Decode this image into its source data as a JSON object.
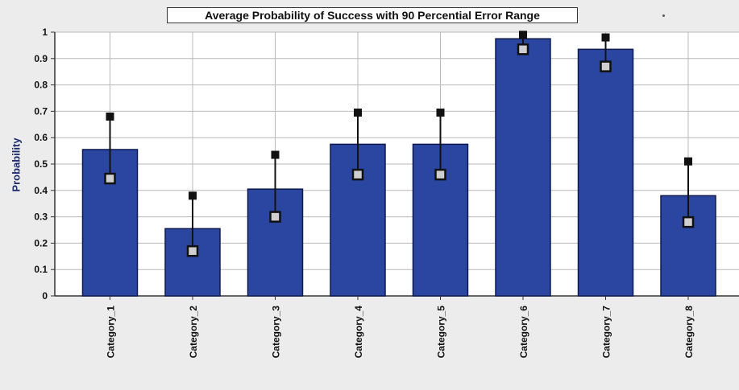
{
  "chart_data": {
    "type": "bar",
    "title": "Average Probability of Success with 90 Percential Error Range",
    "xlabel": "",
    "ylabel": "Probability",
    "ylim": [
      0,
      1
    ],
    "yticks": [
      "0",
      "0.1",
      "0.2",
      "0.3",
      "0.4",
      "0.5",
      "0.6",
      "0.7",
      "0.8",
      "0.9",
      "1"
    ],
    "categories": [
      "Category_1",
      "Category_2",
      "Category_3",
      "Category_4",
      "Category_5",
      "Category_6",
      "Category_7",
      "Category_8"
    ],
    "series": [
      {
        "values": [
          0.555,
          0.255,
          0.405,
          0.575,
          0.575,
          0.975,
          0.935,
          0.38
        ],
        "upper": [
          0.68,
          0.38,
          0.535,
          0.695,
          0.695,
          0.99,
          0.98,
          0.51
        ],
        "lower": [
          0.445,
          0.17,
          0.3,
          0.46,
          0.46,
          0.935,
          0.87,
          0.28
        ]
      }
    ],
    "grid": true,
    "legend": "none",
    "colors": {
      "bar": "#2b46a0",
      "bar_edge": "#0e1a4f",
      "marker": "#111111"
    }
  }
}
